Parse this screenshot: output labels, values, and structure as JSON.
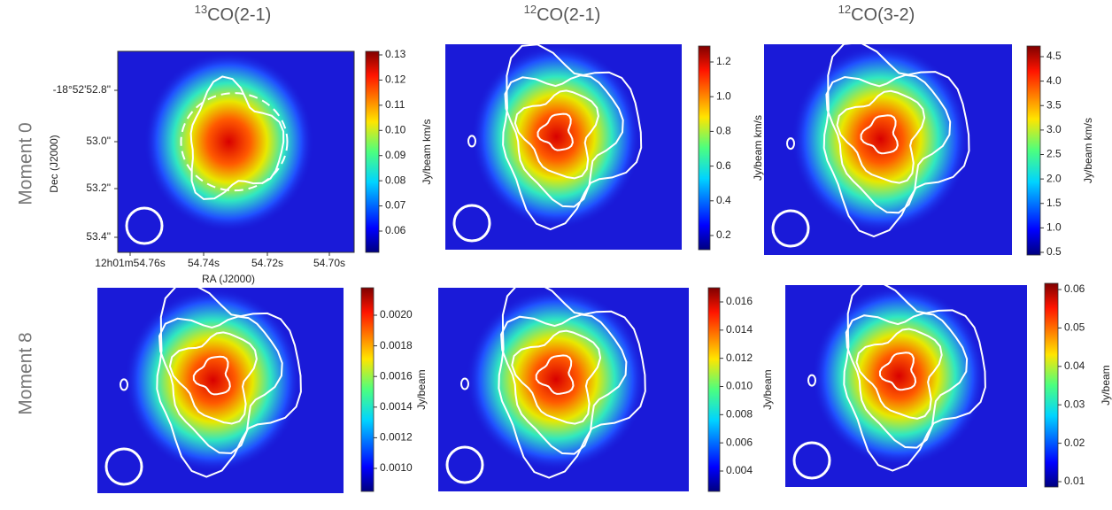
{
  "columns": [
    {
      "isotope": "13",
      "line": "CO(2-1)"
    },
    {
      "isotope": "12",
      "line": "CO(2-1)"
    },
    {
      "isotope": "12",
      "line": "CO(3-2)"
    }
  ],
  "rows": [
    "Moment 0",
    "Moment 8"
  ],
  "axes": {
    "dec_label": "Dec (J2000)",
    "ra_label": "RA (J2000)",
    "dec_ticks": [
      "-18°52'52.8\"",
      "53.0\"",
      "53.2\"",
      "53.4\""
    ],
    "ra_ticks": [
      "12h01m54.76s",
      "54.74s",
      "54.72s",
      "54.70s"
    ]
  },
  "panels": [
    {
      "colorbar_label": "Jy/beam km/s",
      "ticks": [
        "0.13",
        "0.12",
        "0.11",
        "0.10",
        "0.09",
        "0.08",
        "0.07",
        "0.06"
      ]
    },
    {
      "colorbar_label": "Jy/beam km/s",
      "ticks": [
        "1.2",
        "1.0",
        "0.8",
        "0.6",
        "0.4",
        "0.2"
      ]
    },
    {
      "colorbar_label": "Jy/beam km/s",
      "ticks": [
        "4.5",
        "4.0",
        "3.5",
        "3.0",
        "2.5",
        "2.0",
        "1.5",
        "1.0",
        "0.5"
      ]
    },
    {
      "colorbar_label": "Jy/beam",
      "ticks": [
        "0.0020",
        "0.0018",
        "0.0016",
        "0.0014",
        "0.0012",
        "0.0010"
      ]
    },
    {
      "colorbar_label": "Jy/beam",
      "ticks": [
        "0.016",
        "0.014",
        "0.012",
        "0.010",
        "0.008",
        "0.006",
        "0.004"
      ]
    },
    {
      "colorbar_label": "Jy/beam",
      "ticks": [
        "0.06",
        "0.05",
        "0.04",
        "0.03",
        "0.02",
        "0.01"
      ]
    }
  ]
}
